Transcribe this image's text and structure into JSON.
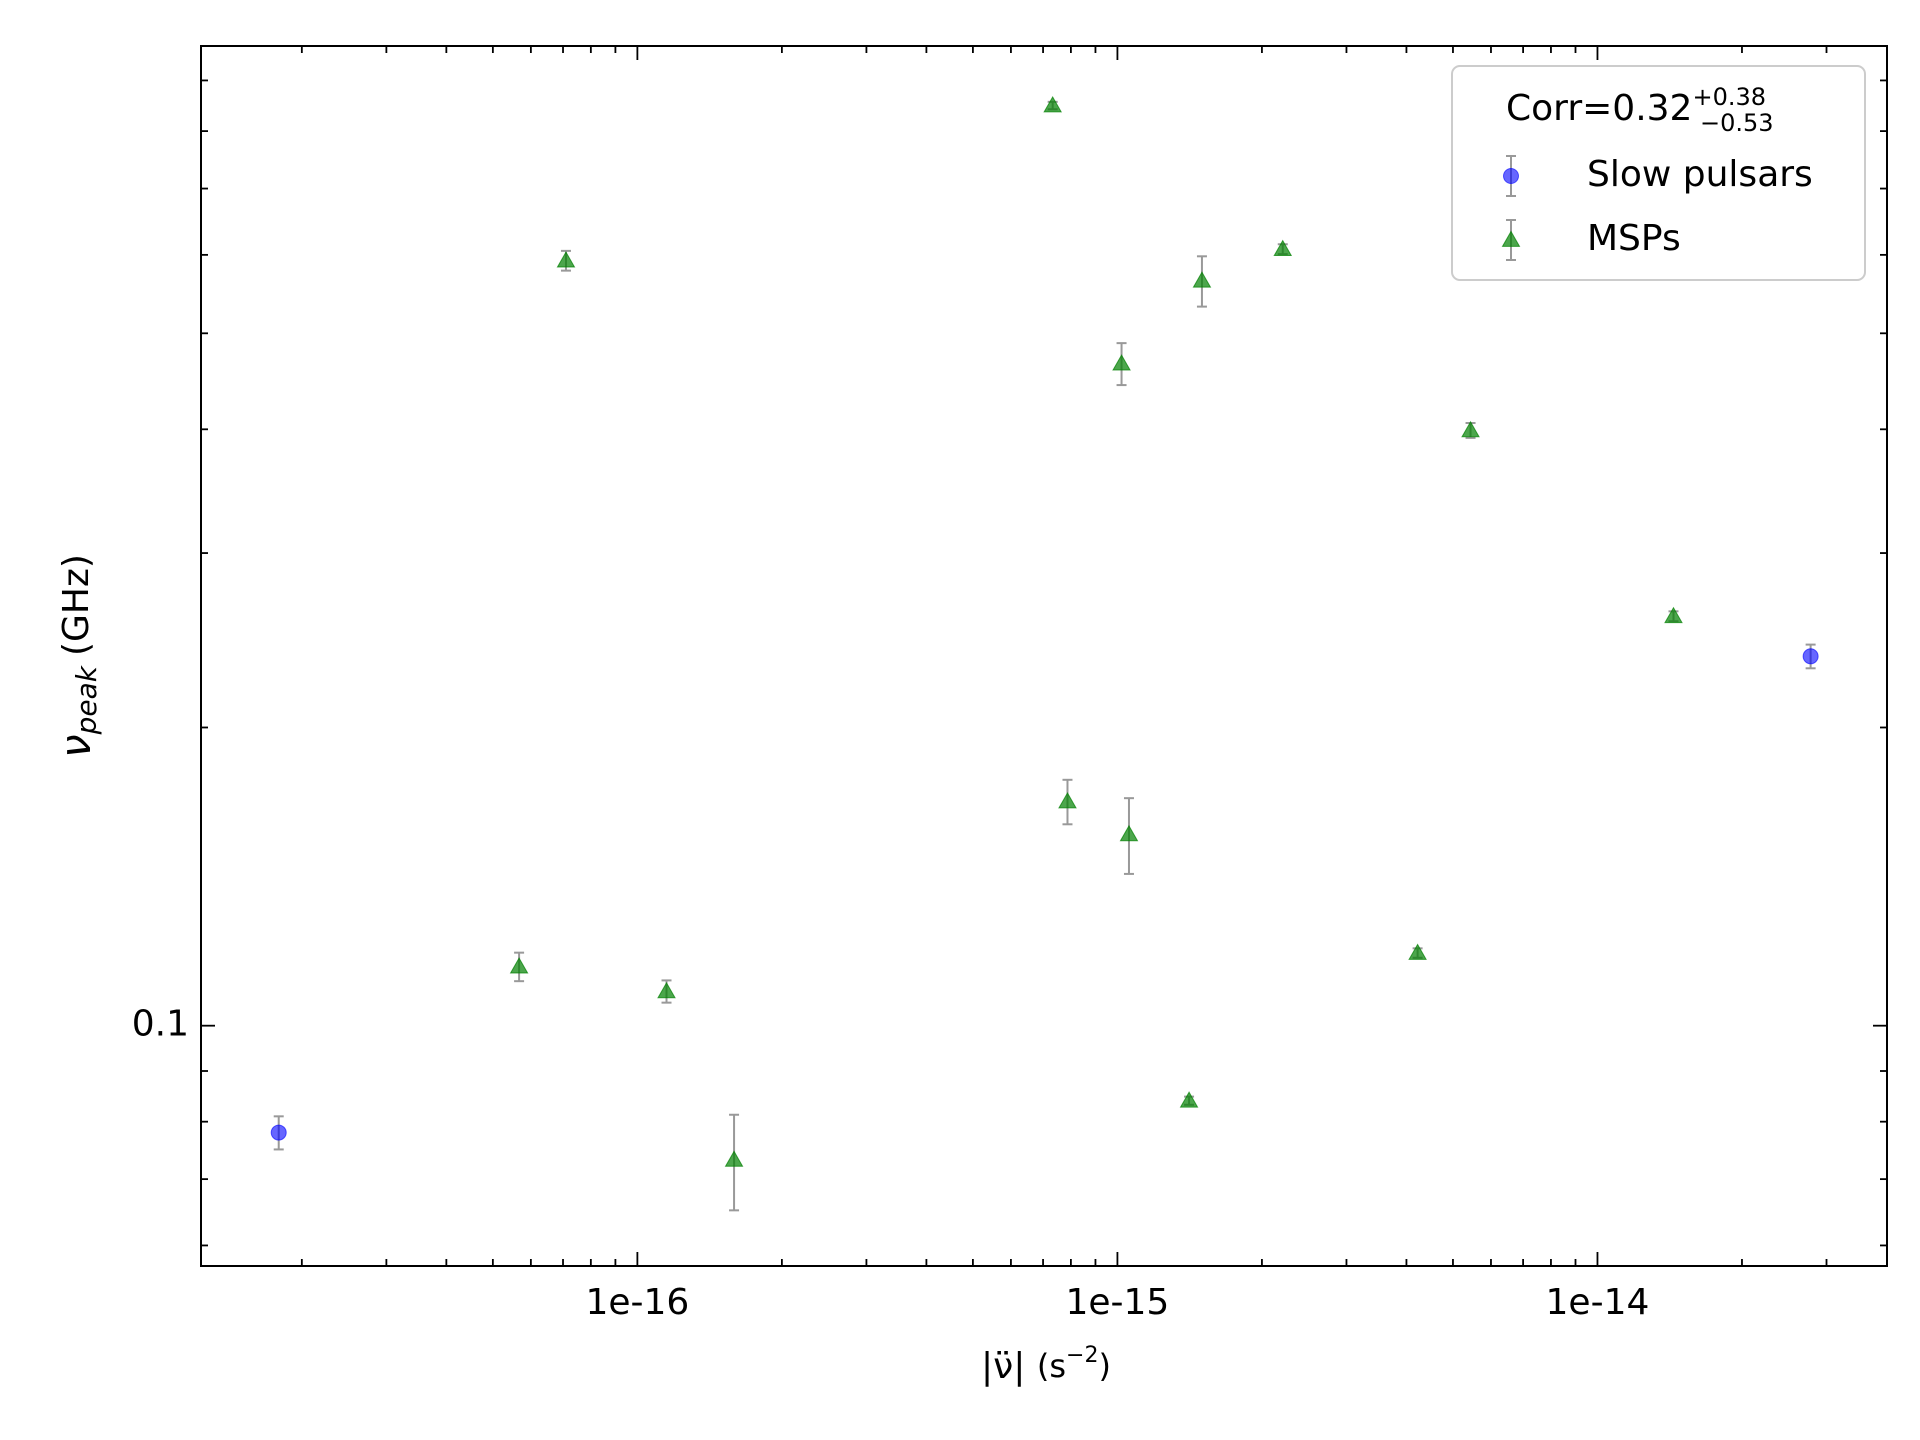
{
  "chart_data": {
    "type": "scatter",
    "xlabel": {
      "symbol": "|ν̈|",
      "unit": "(s",
      "unit_exp": "−2",
      "unit_close": ")"
    },
    "ylabel": {
      "symbol": "ν",
      "subscript": "peak",
      "unit": "(GHz)"
    },
    "xscale": "log",
    "yscale": "log",
    "xlim": [
      1.233e-17,
      4.01e-14
    ],
    "ylim": [
      0.0572,
      0.975
    ],
    "xticks": [
      {
        "value": 1e-16,
        "label": "1e-16"
      },
      {
        "value": 1e-15,
        "label": "1e-15"
      },
      {
        "value": 1e-14,
        "label": "1e-14"
      }
    ],
    "xminor_ticks": [
      2e-17,
      3e-17,
      4e-17,
      5e-17,
      6e-17,
      7e-17,
      8e-17,
      9e-17,
      2e-16,
      3e-16,
      4e-16,
      5e-16,
      6e-16,
      7e-16,
      8e-16,
      9e-16,
      2e-15,
      3e-15,
      4e-15,
      5e-15,
      6e-15,
      7e-15,
      8e-15,
      9e-15,
      2e-14,
      3e-14
    ],
    "yticks": [
      0.1
    ],
    "yminor_ticks": [
      0.06,
      0.07,
      0.08,
      0.09,
      0.2,
      0.3,
      0.4,
      0.5,
      0.6,
      0.7,
      0.8,
      0.9
    ],
    "legend": {
      "position": "upper right",
      "title": {
        "text": "Corr=0.32",
        "sup": "+0.38",
        "sub": "−0.53"
      }
    },
    "errorbar_color": "#999999",
    "series": [
      {
        "name": "Slow pulsars",
        "color": "#0000ff",
        "marker": "circle",
        "x": [
          1.79e-17,
          2.78e-14
        ],
        "values": [
          0.078,
          0.236
        ],
        "errors": [
          0.003,
          0.0065
        ]
      },
      {
        "name": "MSPs",
        "color": "#008000",
        "marker": "triangle",
        "x": [
          5.67e-17,
          7.1e-17,
          1.15e-16,
          1.59e-16,
          7.33e-16,
          7.87e-16,
          1.02e-15,
          1.057e-15,
          1.41e-15,
          1.5e-15,
          2.21e-15,
          4.22e-15,
          5.44e-15,
          1.44e-14
        ],
        "values": [
          0.1147,
          0.592,
          0.1083,
          0.0732,
          0.849,
          0.1684,
          0.466,
          0.156,
          0.084,
          0.565,
          0.608,
          0.1184,
          0.399,
          0.259
        ],
        "errors": [
          0.0038,
          0.0136,
          0.0028,
          0.0081,
          0.0073,
          0.0087,
          0.0227,
          0.0137,
          0.0008,
          0.033,
          0.007,
          0.0013,
          0.0069,
          0.003
        ]
      }
    ]
  }
}
